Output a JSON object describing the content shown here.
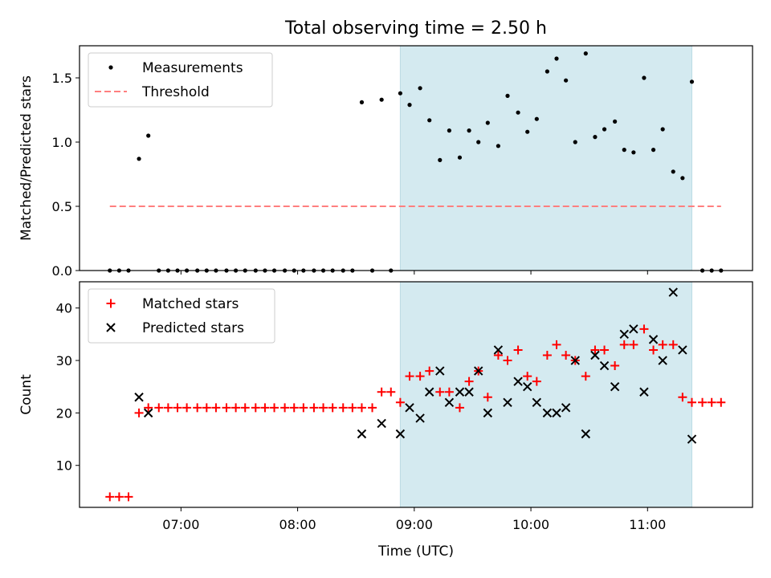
{
  "figure": {
    "title": "Total observing time = 2.50 h",
    "xlabel": "Time (UTC)",
    "x_ticks": [
      "07:00",
      "08:00",
      "09:00",
      "10:00",
      "11:00"
    ]
  },
  "chart_data": [
    {
      "type": "scatter",
      "ylabel": "Matched/Predicted stars",
      "x_unit": "hours UTC",
      "xlim": [
        6.13,
        11.9
      ],
      "ylim": [
        0,
        1.75
      ],
      "y_ticks": [
        "0.0",
        "0.5",
        "1.0",
        "1.5"
      ],
      "shaded_region": {
        "x": [
          8.88,
          11.38
        ],
        "color": "#d4eaf0"
      },
      "legend": {
        "position": "upper-left",
        "entries": [
          "Measurements",
          "Threshold"
        ]
      },
      "series": [
        {
          "name": "Measurements",
          "marker": "dot",
          "color": "#000000",
          "x": [
            6.39,
            6.47,
            6.55,
            6.64,
            6.72,
            6.81,
            6.89,
            6.97,
            7.05,
            7.14,
            7.22,
            7.3,
            7.39,
            7.47,
            7.55,
            7.64,
            7.72,
            7.8,
            7.89,
            7.97,
            8.05,
            8.14,
            8.22,
            8.3,
            8.39,
            8.47,
            8.55,
            8.64,
            8.72,
            8.8,
            8.88,
            8.96,
            9.05,
            9.13,
            9.22,
            9.3,
            9.39,
            9.47,
            9.55,
            9.63,
            9.72,
            9.8,
            9.89,
            9.97,
            10.05,
            10.14,
            10.22,
            10.3,
            10.38,
            10.47,
            10.55,
            10.63,
            10.72,
            10.8,
            10.88,
            10.97,
            11.05,
            11.13,
            11.22,
            11.3,
            11.38,
            11.47,
            11.55,
            11.63
          ],
          "y": [
            0.0,
            0.0,
            0.0,
            0.87,
            1.05,
            0.0,
            0.0,
            0.0,
            0.0,
            0.0,
            0.0,
            0.0,
            0.0,
            0.0,
            0.0,
            0.0,
            0.0,
            0.0,
            0.0,
            0.0,
            0.0,
            0.0,
            0.0,
            0.0,
            0.0,
            0.0,
            1.31,
            0.0,
            1.33,
            0.0,
            1.38,
            1.29,
            1.42,
            1.17,
            0.86,
            1.09,
            0.88,
            1.09,
            1.0,
            1.15,
            0.97,
            1.36,
            1.23,
            1.08,
            1.18,
            1.55,
            1.65,
            1.48,
            1.0,
            1.69,
            1.04,
            1.1,
            1.16,
            0.94,
            0.92,
            1.5,
            0.94,
            1.1,
            0.77,
            0.72,
            1.47,
            0.0,
            0.0,
            0.0
          ]
        },
        {
          "name": "Threshold",
          "marker": "dashed-line",
          "color": "#ff7f7f",
          "x": [
            6.39,
            11.63
          ],
          "y": [
            0.5,
            0.5
          ]
        }
      ]
    },
    {
      "type": "scatter",
      "ylabel": "Count",
      "x_unit": "hours UTC",
      "xlim": [
        6.13,
        11.9
      ],
      "ylim": [
        2,
        45
      ],
      "y_ticks": [
        "10",
        "20",
        "30",
        "40"
      ],
      "shaded_region": {
        "x": [
          8.88,
          11.38
        ],
        "color": "#d4eaf0"
      },
      "legend": {
        "position": "upper-left",
        "entries": [
          "Matched stars",
          "Predicted stars"
        ]
      },
      "series": [
        {
          "name": "Matched stars",
          "marker": "plus",
          "color": "#ff0000",
          "x": [
            6.39,
            6.47,
            6.55,
            6.64,
            6.72,
            6.81,
            6.89,
            6.97,
            7.05,
            7.14,
            7.22,
            7.3,
            7.39,
            7.47,
            7.55,
            7.64,
            7.72,
            7.8,
            7.89,
            7.97,
            8.05,
            8.14,
            8.22,
            8.3,
            8.39,
            8.47,
            8.55,
            8.64,
            8.72,
            8.8,
            8.88,
            8.96,
            9.05,
            9.13,
            9.22,
            9.3,
            9.39,
            9.47,
            9.55,
            9.63,
            9.72,
            9.8,
            9.89,
            9.97,
            10.05,
            10.14,
            10.22,
            10.3,
            10.38,
            10.47,
            10.55,
            10.63,
            10.72,
            10.8,
            10.88,
            10.97,
            11.05,
            11.13,
            11.22,
            11.3,
            11.38,
            11.47,
            11.55,
            11.63
          ],
          "y": [
            4,
            4,
            4,
            20,
            21,
            21,
            21,
            21,
            21,
            21,
            21,
            21,
            21,
            21,
            21,
            21,
            21,
            21,
            21,
            21,
            21,
            21,
            21,
            21,
            21,
            21,
            21,
            21,
            24,
            24,
            22,
            27,
            27,
            28,
            24,
            24,
            21,
            26,
            28,
            23,
            31,
            30,
            32,
            27,
            26,
            31,
            33,
            31,
            30,
            27,
            32,
            32,
            29,
            33,
            33,
            36,
            32,
            33,
            33,
            23,
            22,
            22,
            22,
            22
          ]
        },
        {
          "name": "Predicted stars",
          "marker": "x",
          "color": "#000000",
          "x": [
            6.64,
            6.72,
            8.55,
            8.72,
            8.88,
            8.96,
            9.05,
            9.13,
            9.22,
            9.3,
            9.39,
            9.47,
            9.55,
            9.63,
            9.72,
            9.8,
            9.89,
            9.97,
            10.05,
            10.14,
            10.22,
            10.3,
            10.38,
            10.47,
            10.55,
            10.63,
            10.72,
            10.8,
            10.88,
            10.97,
            11.05,
            11.13,
            11.22,
            11.3,
            11.38
          ],
          "y": [
            23,
            20,
            16,
            18,
            16,
            21,
            19,
            24,
            28,
            22,
            24,
            24,
            28,
            20,
            32,
            22,
            26,
            25,
            22,
            20,
            20,
            21,
            30,
            16,
            31,
            29,
            25,
            35,
            36,
            24,
            34,
            30,
            43,
            32,
            15
          ]
        }
      ]
    }
  ]
}
